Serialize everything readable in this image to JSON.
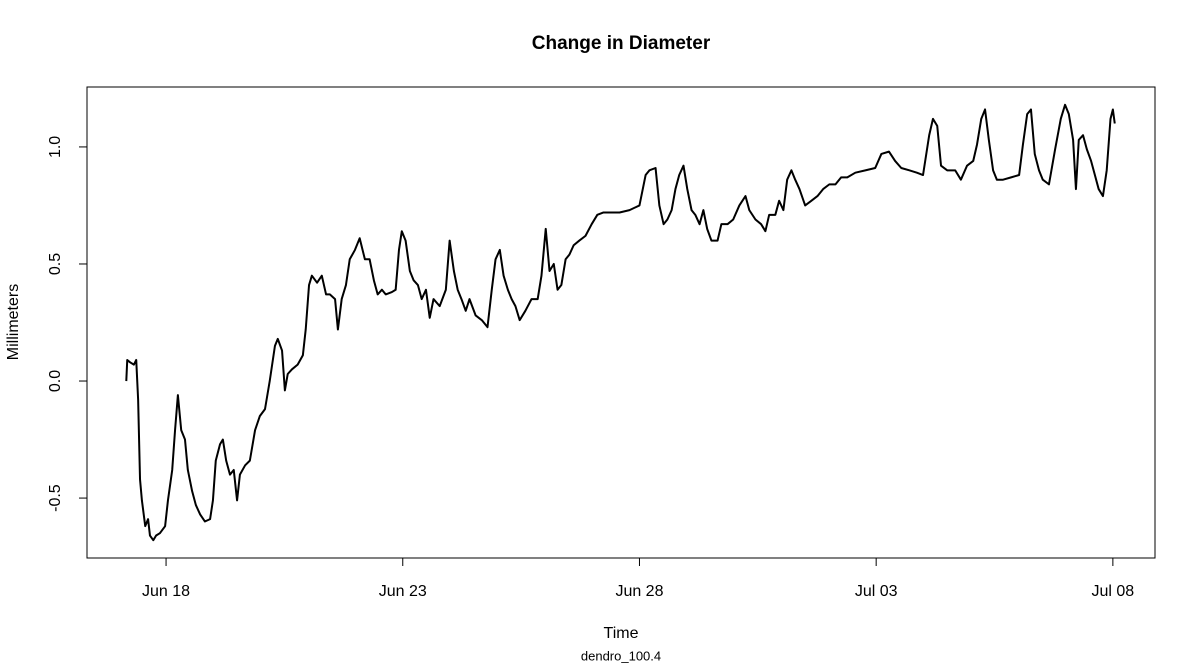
{
  "chart_data": {
    "type": "line",
    "title": "Change in Diameter",
    "subtitle": "dendro_100.4",
    "x_label": "Time",
    "y_label": "Millimeters",
    "xlim": [
      16.33,
      38.89
    ],
    "ylim": [
      -0.756,
      1.256
    ],
    "xticks": [
      {
        "value": 18,
        "label": "Jun 18"
      },
      {
        "value": 23,
        "label": "Jun 23"
      },
      {
        "value": 28,
        "label": "Jun 28"
      },
      {
        "value": 33,
        "label": "Jul 03"
      },
      {
        "value": 38,
        "label": "Jul 08"
      }
    ],
    "yticks": [
      -0.5,
      {
        "value": 0,
        "label": "0.0"
      },
      0.5,
      {
        "value": 1,
        "label": "1.0"
      }
    ],
    "grid": false,
    "series": [
      {
        "color": "#000000",
        "x": [
          17.16,
          17.18,
          17.24,
          17.32,
          17.37,
          17.41,
          17.45,
          17.49,
          17.56,
          17.62,
          17.66,
          17.73,
          17.79,
          17.87,
          17.98,
          18.04,
          18.13,
          18.19,
          18.25,
          18.32,
          18.4,
          18.46,
          18.55,
          18.63,
          18.72,
          18.82,
          18.93,
          18.99,
          19.05,
          19.14,
          19.2,
          19.27,
          19.35,
          19.43,
          19.5,
          19.56,
          19.67,
          19.77,
          19.88,
          19.98,
          20.09,
          20.19,
          20.3,
          20.36,
          20.45,
          20.51,
          20.57,
          20.66,
          20.78,
          20.89,
          20.95,
          21.02,
          21.08,
          21.19,
          21.29,
          21.38,
          21.46,
          21.57,
          21.63,
          21.71,
          21.8,
          21.88,
          21.99,
          22.09,
          22.2,
          22.3,
          22.39,
          22.47,
          22.56,
          22.64,
          22.77,
          22.85,
          22.92,
          22.98,
          23.06,
          23.15,
          23.23,
          23.32,
          23.4,
          23.49,
          23.57,
          23.65,
          23.78,
          23.91,
          23.99,
          24.08,
          24.16,
          24.24,
          24.33,
          24.41,
          24.54,
          24.67,
          24.79,
          24.88,
          24.96,
          25.05,
          25.13,
          25.22,
          25.3,
          25.38,
          25.47,
          25.59,
          25.72,
          25.85,
          25.93,
          26.02,
          26.1,
          26.19,
          26.27,
          26.35,
          26.44,
          26.52,
          26.61,
          26.73,
          26.86,
          26.99,
          27.11,
          27.24,
          27.41,
          27.58,
          27.79,
          28.0,
          28.13,
          28.21,
          28.34,
          28.42,
          28.51,
          28.59,
          28.68,
          28.76,
          28.84,
          28.93,
          29.01,
          29.1,
          29.18,
          29.27,
          29.35,
          29.43,
          29.52,
          29.65,
          29.73,
          29.86,
          29.98,
          30.11,
          30.24,
          30.32,
          30.45,
          30.57,
          30.66,
          30.74,
          30.87,
          30.95,
          31.04,
          31.12,
          31.21,
          31.29,
          31.38,
          31.5,
          31.63,
          31.76,
          31.88,
          32.01,
          32.14,
          32.26,
          32.39,
          32.56,
          32.77,
          32.98,
          33.11,
          33.27,
          33.4,
          33.53,
          33.7,
          33.86,
          33.99,
          34.12,
          34.2,
          34.29,
          34.37,
          34.5,
          34.67,
          34.79,
          34.92,
          35.05,
          35.13,
          35.22,
          35.3,
          35.38,
          35.47,
          35.55,
          35.68,
          35.85,
          36.02,
          36.1,
          36.19,
          36.27,
          36.35,
          36.44,
          36.52,
          36.65,
          36.78,
          36.9,
          36.99,
          37.07,
          37.16,
          37.22,
          37.28,
          37.37,
          37.45,
          37.54,
          37.62,
          37.7,
          37.79,
          37.87,
          37.95,
          38.0,
          38.04
        ],
        "values": [
          0,
          0.09,
          0.08,
          0.07,
          0.09,
          -0.08,
          -0.42,
          -0.51,
          -0.62,
          -0.59,
          -0.66,
          -0.68,
          -0.66,
          -0.65,
          -0.62,
          -0.51,
          -0.38,
          -0.21,
          -0.06,
          -0.21,
          -0.25,
          -0.38,
          -0.47,
          -0.53,
          -0.57,
          -0.6,
          -0.59,
          -0.51,
          -0.34,
          -0.27,
          -0.25,
          -0.34,
          -0.4,
          -0.38,
          -0.51,
          -0.4,
          -0.36,
          -0.34,
          -0.21,
          -0.15,
          -0.12,
          0.0,
          0.15,
          0.18,
          0.13,
          -0.04,
          0.03,
          0.05,
          0.07,
          0.11,
          0.22,
          0.41,
          0.45,
          0.42,
          0.45,
          0.37,
          0.37,
          0.35,
          0.22,
          0.35,
          0.41,
          0.52,
          0.56,
          0.61,
          0.52,
          0.52,
          0.43,
          0.37,
          0.39,
          0.37,
          0.38,
          0.39,
          0.56,
          0.64,
          0.6,
          0.47,
          0.43,
          0.41,
          0.35,
          0.39,
          0.27,
          0.35,
          0.32,
          0.39,
          0.6,
          0.47,
          0.39,
          0.35,
          0.3,
          0.35,
          0.28,
          0.26,
          0.23,
          0.39,
          0.52,
          0.56,
          0.45,
          0.39,
          0.35,
          0.32,
          0.26,
          0.3,
          0.35,
          0.35,
          0.45,
          0.65,
          0.47,
          0.5,
          0.39,
          0.41,
          0.52,
          0.54,
          0.58,
          0.6,
          0.62,
          0.67,
          0.71,
          0.72,
          0.72,
          0.72,
          0.73,
          0.75,
          0.88,
          0.9,
          0.91,
          0.75,
          0.67,
          0.69,
          0.73,
          0.82,
          0.88,
          0.92,
          0.82,
          0.73,
          0.71,
          0.67,
          0.73,
          0.65,
          0.6,
          0.6,
          0.67,
          0.67,
          0.69,
          0.75,
          0.79,
          0.73,
          0.69,
          0.67,
          0.64,
          0.71,
          0.71,
          0.77,
          0.73,
          0.86,
          0.9,
          0.86,
          0.82,
          0.75,
          0.77,
          0.79,
          0.82,
          0.84,
          0.84,
          0.87,
          0.87,
          0.89,
          0.9,
          0.91,
          0.97,
          0.98,
          0.94,
          0.91,
          0.9,
          0.89,
          0.88,
          1.05,
          1.12,
          1.09,
          0.92,
          0.9,
          0.9,
          0.86,
          0.92,
          0.94,
          1.01,
          1.12,
          1.16,
          1.03,
          0.9,
          0.86,
          0.86,
          0.87,
          0.88,
          1.01,
          1.14,
          1.16,
          0.97,
          0.9,
          0.86,
          0.84,
          0.99,
          1.12,
          1.18,
          1.14,
          1.03,
          0.82,
          1.03,
          1.05,
          0.99,
          0.94,
          0.88,
          0.82,
          0.79,
          0.9,
          1.12,
          1.16,
          1.1
        ]
      }
    ]
  }
}
